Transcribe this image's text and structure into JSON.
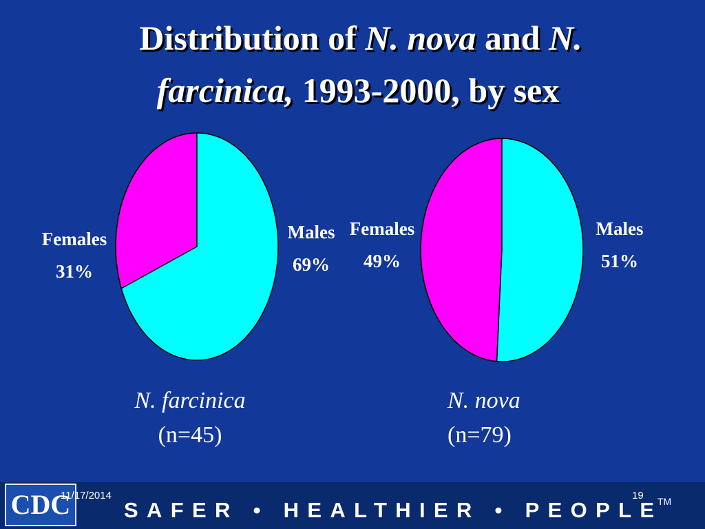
{
  "title_parts": [
    "Distribution of ",
    "N. nova",
    " and ",
    "N.",
    "farcinica,",
    " 1993-2000, by sex"
  ],
  "chart_data": [
    {
      "type": "pie",
      "title": "N. farcinica",
      "subtitle": "(n=45)",
      "categories": [
        "Females",
        "Males"
      ],
      "values": [
        31,
        69
      ],
      "value_labels": [
        "31%",
        "69%"
      ],
      "colors": [
        "#ff00ff",
        "#00ffff"
      ]
    },
    {
      "type": "pie",
      "title": "N. nova",
      "subtitle": "(n=79)",
      "categories": [
        "Females",
        "Males"
      ],
      "values": [
        49,
        51
      ],
      "value_labels": [
        "49%",
        "51%"
      ],
      "colors": [
        "#ff00ff",
        "#00ffff"
      ]
    }
  ],
  "footer": {
    "logo": "CDC",
    "date": "11/17/2014",
    "page": "19",
    "slogan": "SAFER • HEALTHIER • PEOPLE",
    "tm": "TM"
  }
}
